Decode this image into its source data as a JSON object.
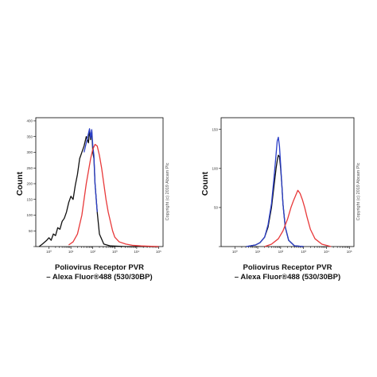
{
  "colors": {
    "control_black": "#111111",
    "isotype_blue": "#2a3ec8",
    "sample_red": "#e8393a",
    "frame": "#000000"
  },
  "chart_data": [
    {
      "type": "line",
      "panel": "left",
      "ylabel": "Count",
      "xlabel_line1": "Poliovirus Receptor PVR",
      "xlabel_line2": "– Alexa Fluor®488 (530/30BP)",
      "xscale": "log",
      "xlim": [
        -0.6,
        5.2
      ],
      "ylim": [
        0,
        410
      ],
      "y_ticks": [
        0,
        50,
        100,
        150,
        200,
        250,
        300,
        350,
        400
      ],
      "y_tick_labels": [
        "",
        "50",
        "100",
        "150",
        "200",
        "250",
        "300",
        "350",
        "400"
      ],
      "x_ticks": [
        0,
        1,
        2,
        3,
        4,
        5
      ],
      "x_tick_labels": [
        "10⁰",
        "10¹",
        "10²",
        "10³",
        "10⁴",
        "10⁵"
      ],
      "copyright": "Copyright (c) 2019 Abcam Plc",
      "series": [
        {
          "color": "#111111",
          "x": [
            -0.45,
            -0.3,
            -0.1,
            0.0,
            0.1,
            0.2,
            0.3,
            0.4,
            0.5,
            0.6,
            0.7,
            0.8,
            0.9,
            1.0,
            1.1,
            1.2,
            1.3,
            1.4,
            1.5,
            1.6,
            1.7,
            1.8,
            1.85,
            1.9,
            1.95,
            2.0,
            2.05,
            2.1,
            2.2,
            2.3,
            2.5,
            2.8,
            3.5,
            5.0
          ],
          "y": [
            0,
            8,
            20,
            28,
            20,
            40,
            35,
            60,
            55,
            80,
            90,
            110,
            140,
            160,
            150,
            195,
            230,
            280,
            300,
            320,
            350,
            330,
            370,
            340,
            370,
            300,
            280,
            200,
            110,
            40,
            8,
            2,
            0,
            0
          ]
        },
        {
          "color": "#2a3ec8",
          "x": [
            1.6,
            1.7,
            1.8,
            1.85,
            1.9,
            1.95,
            2.0,
            2.05,
            2.1,
            2.2
          ],
          "y": [
            300,
            330,
            360,
            375,
            345,
            372,
            320,
            290,
            200,
            110
          ]
        },
        {
          "color": "#e8393a",
          "x": [
            0.9,
            1.1,
            1.3,
            1.5,
            1.6,
            1.7,
            1.8,
            1.9,
            2.0,
            2.1,
            2.2,
            2.3,
            2.4,
            2.5,
            2.6,
            2.7,
            2.8,
            2.9,
            3.0,
            3.2,
            3.5,
            3.8,
            4.2,
            5.0
          ],
          "y": [
            5,
            15,
            40,
            100,
            150,
            200,
            240,
            280,
            310,
            325,
            320,
            290,
            250,
            200,
            150,
            110,
            80,
            50,
            30,
            15,
            8,
            4,
            2,
            0
          ]
        }
      ]
    },
    {
      "type": "line",
      "panel": "right",
      "ylabel": "Count",
      "xlabel_line1": "Poliovirus Receptor PVR",
      "xlabel_line2": "– Alexa Fluor®488 (530/30BP)",
      "xscale": "log",
      "xlim": [
        -0.6,
        5.2
      ],
      "ylim": [
        0,
        165
      ],
      "y_ticks": [
        0,
        50,
        100,
        150
      ],
      "y_tick_labels": [
        "",
        "50",
        "100",
        "150"
      ],
      "x_ticks": [
        0,
        1,
        2,
        3,
        4,
        5
      ],
      "x_tick_labels": [
        "10⁰",
        "10¹",
        "10²",
        "10³",
        "10⁴",
        "10⁵"
      ],
      "copyright": "Copyright (c) 2019 Abcam Plc",
      "series": [
        {
          "color": "#111111",
          "x": [
            0.5,
            0.9,
            1.1,
            1.3,
            1.45,
            1.6,
            1.7,
            1.8,
            1.85,
            1.9,
            1.95,
            2.0,
            2.05,
            2.1,
            2.2,
            2.35,
            2.6,
            3.0
          ],
          "y": [
            0,
            2,
            5,
            12,
            25,
            50,
            75,
            100,
            110,
            117,
            115,
            100,
            80,
            55,
            25,
            8,
            1,
            0
          ]
        },
        {
          "color": "#2a3ec8",
          "x": [
            0.5,
            0.9,
            1.1,
            1.3,
            1.45,
            1.6,
            1.7,
            1.8,
            1.85,
            1.9,
            1.95,
            2.0,
            2.05,
            2.1,
            2.2,
            2.35,
            2.6,
            3.0
          ],
          "y": [
            0,
            2,
            5,
            12,
            28,
            55,
            85,
            118,
            135,
            140,
            128,
            105,
            80,
            55,
            25,
            8,
            1,
            0
          ]
        },
        {
          "color": "#e8393a",
          "x": [
            1.3,
            1.6,
            1.9,
            2.1,
            2.3,
            2.45,
            2.55,
            2.65,
            2.75,
            2.85,
            2.95,
            3.05,
            3.15,
            3.3,
            3.5,
            3.8,
            4.2
          ],
          "y": [
            0,
            3,
            10,
            20,
            35,
            50,
            58,
            65,
            72,
            68,
            60,
            50,
            38,
            22,
            10,
            3,
            0
          ]
        }
      ]
    }
  ]
}
